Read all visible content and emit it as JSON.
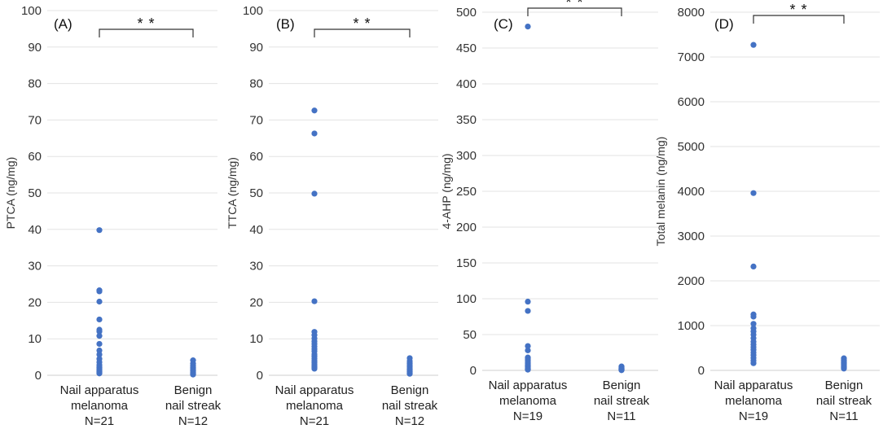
{
  "chart_data": [
    {
      "type": "scatter",
      "panel_label": "(A)",
      "ylabel": "PTCA (ng/mg)",
      "ylim": [
        0,
        100
      ],
      "yticks": [
        0,
        10,
        20,
        30,
        40,
        50,
        60,
        70,
        80,
        90,
        100
      ],
      "grid": true,
      "significance": "* *",
      "categories": [
        {
          "lines": [
            "Nail apparatus",
            "melanoma",
            "N=21"
          ]
        },
        {
          "lines": [
            "Benign",
            "nail streak",
            "N=12"
          ]
        }
      ],
      "series": [
        {
          "values": [
            39.8,
            23.3,
            23.0,
            20.2,
            15.3,
            12.5,
            12.0,
            10.8,
            8.6,
            6.8,
            5.7,
            4.5,
            3.6,
            2.8,
            2.2,
            1.8,
            1.4,
            1.1,
            0.9,
            0.7,
            0.5
          ]
        },
        {
          "values": [
            4.1,
            3.2,
            2.6,
            2.1,
            1.8,
            1.5,
            1.2,
            0.9,
            0.7,
            0.5,
            0.3,
            0.2
          ]
        }
      ]
    },
    {
      "type": "scatter",
      "panel_label": "(B)",
      "ylabel": "TTCA (ng/mg)",
      "ylim": [
        0,
        100
      ],
      "yticks": [
        0,
        10,
        20,
        30,
        40,
        50,
        60,
        70,
        80,
        90,
        100
      ],
      "grid": true,
      "significance": "* *",
      "categories": [
        {
          "lines": [
            "Nail apparatus",
            "melanoma",
            "N=21"
          ]
        },
        {
          "lines": [
            "Benign",
            "nail streak",
            "N=12"
          ]
        }
      ],
      "series": [
        {
          "values": [
            72.6,
            66.3,
            49.8,
            20.3,
            11.9,
            11.0,
            10.1,
            9.3,
            8.6,
            7.9,
            7.2,
            6.6,
            5.8,
            5.2,
            4.6,
            4.0,
            3.5,
            3.0,
            2.6,
            2.2,
            1.8
          ]
        },
        {
          "values": [
            4.7,
            3.9,
            3.3,
            2.8,
            2.4,
            2.0,
            1.7,
            1.4,
            1.1,
            0.9,
            0.6,
            0.4
          ]
        }
      ]
    },
    {
      "type": "scatter",
      "panel_label": "(C)",
      "ylabel": "4-AHP (ng/mg)",
      "ylim": [
        0,
        500
      ],
      "yticks": [
        0,
        50,
        100,
        150,
        200,
        250,
        300,
        350,
        400,
        450,
        500
      ],
      "grid": true,
      "significance": "* *",
      "categories": [
        {
          "lines": [
            "Nail apparatus",
            "melanoma",
            "N=19"
          ]
        },
        {
          "lines": [
            "Benign",
            "nail streak",
            "N=11"
          ]
        }
      ],
      "series": [
        {
          "values": [
            480,
            96,
            83,
            34,
            28,
            18,
            16,
            14,
            12,
            10,
            8,
            7,
            6,
            5,
            4,
            3,
            2,
            1.5,
            1
          ]
        },
        {
          "values": [
            5.5,
            4.5,
            3.6,
            3.0,
            2.5,
            2.0,
            1.6,
            1.2,
            0.9,
            0.6,
            0.3
          ]
        }
      ]
    },
    {
      "type": "scatter",
      "panel_label": "(D)",
      "ylabel": "Total melanin (ng/mg)",
      "ylim": [
        0,
        8000
      ],
      "yticks": [
        0,
        1000,
        2000,
        3000,
        4000,
        5000,
        6000,
        7000,
        8000
      ],
      "grid": true,
      "significance": "* *",
      "categories": [
        {
          "lines": [
            "Nail apparatus",
            "melanoma",
            "N=19"
          ]
        },
        {
          "lines": [
            "Benign",
            "nail streak",
            "N=11"
          ]
        }
      ],
      "series": [
        {
          "values": [
            7270,
            3960,
            2320,
            1250,
            1200,
            1040,
            940,
            870,
            800,
            720,
            640,
            580,
            520,
            460,
            400,
            340,
            280,
            220,
            160
          ]
        },
        {
          "values": [
            270,
            235,
            205,
            180,
            160,
            140,
            120,
            100,
            80,
            60,
            40
          ]
        }
      ]
    }
  ]
}
